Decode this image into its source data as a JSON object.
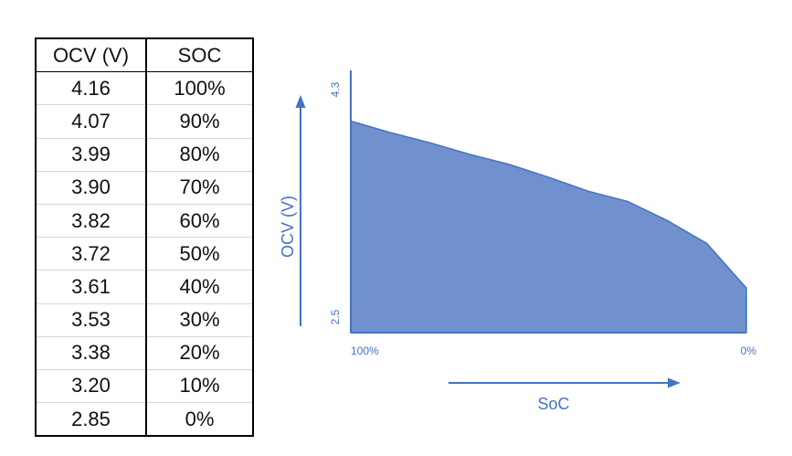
{
  "table": {
    "headers": [
      "OCV (V)",
      "SOC"
    ],
    "rows": [
      [
        "4.16",
        "100%"
      ],
      [
        "4.07",
        "90%"
      ],
      [
        "3.99",
        "80%"
      ],
      [
        "3.90",
        "70%"
      ],
      [
        "3.82",
        "60%"
      ],
      [
        "3.72",
        "50%"
      ],
      [
        "3.61",
        "40%"
      ],
      [
        "3.53",
        "30%"
      ],
      [
        "3.38",
        "20%"
      ],
      [
        "3.20",
        "10%"
      ],
      [
        "2.85",
        "0%"
      ]
    ]
  },
  "chart_data": {
    "type": "area",
    "xlabel": "SoC",
    "ylabel": "OCV (V)",
    "x": [
      100,
      90,
      80,
      70,
      60,
      50,
      40,
      30,
      20,
      10,
      0
    ],
    "y": [
      4.16,
      4.07,
      3.99,
      3.9,
      3.82,
      3.72,
      3.61,
      3.53,
      3.38,
      3.2,
      2.85
    ],
    "xlim": [
      100,
      0
    ],
    "ylim": [
      2.5,
      4.3
    ],
    "x_tick_labels": [
      "100%",
      "0%"
    ],
    "y_tick_labels": [
      "2.5",
      "4.3"
    ],
    "grid": false,
    "colors": {
      "fill": "#7090ce",
      "stroke": "#4472c4",
      "axis": "#4472c4"
    }
  }
}
